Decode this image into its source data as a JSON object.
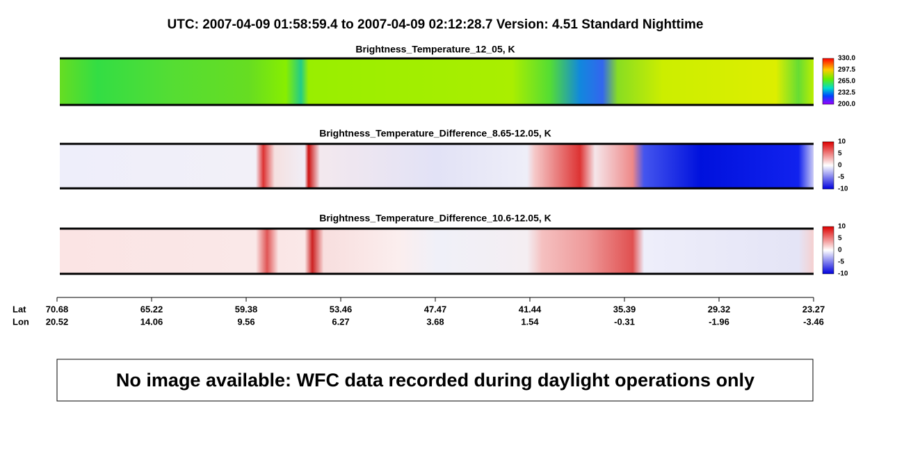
{
  "header": {
    "title": "UTC:  2007-04-09   01:58:59.4  to  2007-04-09   02:12:28.7    Version: 4.51  Standard Nighttime"
  },
  "panels": [
    {
      "title": "Brightness_Temperature_12_05, K",
      "colorbar": [
        "330.0",
        "297.5",
        "265.0",
        "232.5",
        "200.0"
      ]
    },
    {
      "title": "Brightness_Temperature_Difference_8.65-12.05, K",
      "colorbar": [
        "10",
        "5",
        "0",
        "-5",
        "-10"
      ]
    },
    {
      "title": "Brightness_Temperature_Difference_10.6-12.05, K",
      "colorbar": [
        "10",
        "5",
        "0",
        "-5",
        "-10"
      ]
    }
  ],
  "axis": {
    "row_labels": [
      "Lat",
      "Lon"
    ],
    "lat": [
      "70.68",
      "65.22",
      "59.38",
      "53.46",
      "47.47",
      "41.44",
      "35.39",
      "29.32",
      "23.27"
    ],
    "lon": [
      "20.52",
      "14.06",
      "9.56",
      "6.27",
      "3.68",
      "1.54",
      "-0.31",
      "-1.96",
      "-3.46"
    ]
  },
  "message": "No image available: WFC data recorded during daylight operations only"
}
